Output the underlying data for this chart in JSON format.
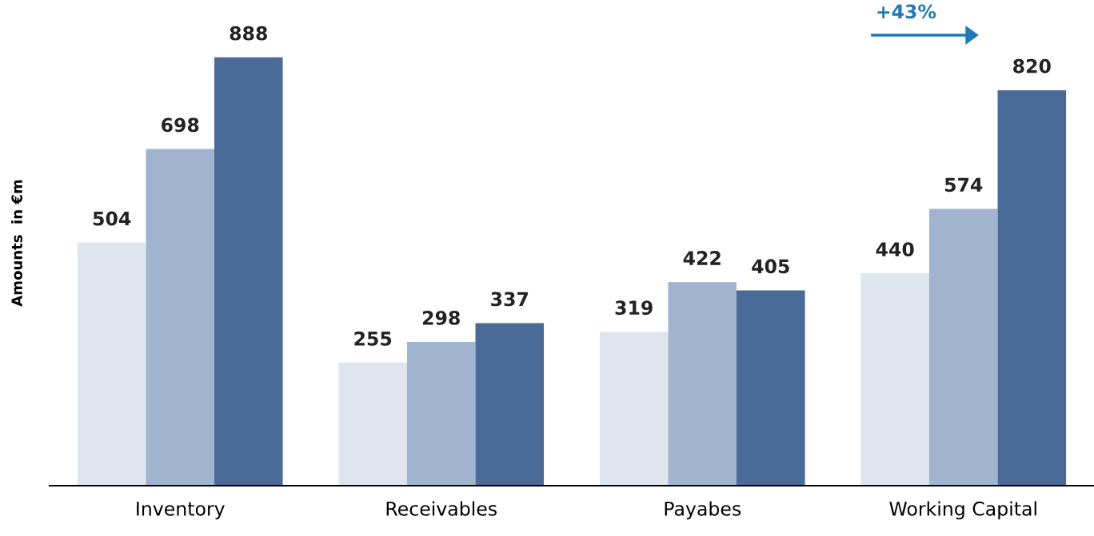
{
  "chart_data": {
    "type": "bar",
    "ylabel": "Amounts  in €m",
    "categories": [
      "Inventory",
      "Receivables",
      "Payabes",
      "Working Capital"
    ],
    "series": [
      {
        "color": "#dfe5ef",
        "values": [
          504,
          255,
          319,
          440
        ]
      },
      {
        "color": "#a0b3cf",
        "values": [
          698,
          298,
          422,
          574
        ]
      },
      {
        "color": "#4a6b98",
        "values": [
          888,
          337,
          405,
          820
        ]
      }
    ],
    "data_labels": true,
    "grid": false,
    "legend": false,
    "tick_labels": "x",
    "annotations": [
      "+43%"
    ]
  }
}
